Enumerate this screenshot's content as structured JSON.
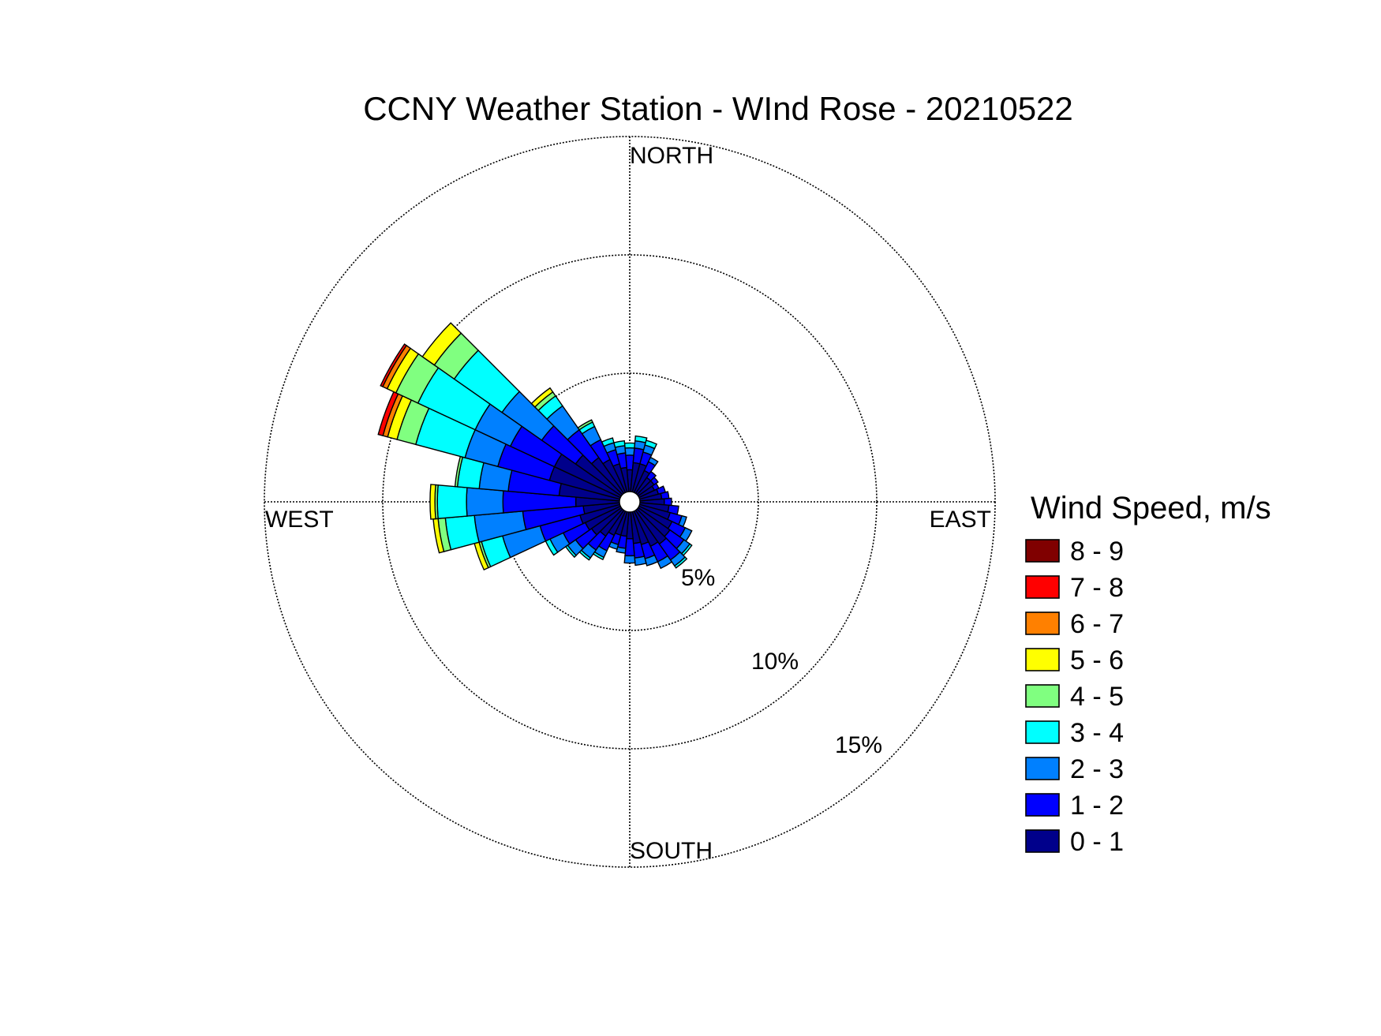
{
  "chart_data": {
    "type": "wind-rose",
    "title": "CCNY Weather Station - WInd Rose - 20210522",
    "direction_labels": {
      "north": "NORTH",
      "south": "SOUTH",
      "east": "EAST",
      "west": "WEST"
    },
    "radial_tick_labels": [
      "5%",
      "10%",
      "15%"
    ],
    "radial_ticks_percent": [
      5,
      10,
      15
    ],
    "rmax_percent": 15,
    "legend_title": "Wind Speed, m/s",
    "legend_position": "right",
    "speed_bins": [
      {
        "label": "0 - 1",
        "color": "#00008b"
      },
      {
        "label": "1 - 2",
        "color": "#0000ff"
      },
      {
        "label": "2 - 3",
        "color": "#0080ff"
      },
      {
        "label": "3 - 4",
        "color": "#00ffff"
      },
      {
        "label": "4 - 5",
        "color": "#80ff80"
      },
      {
        "label": "5 - 6",
        "color": "#ffff00"
      },
      {
        "label": "6 - 7",
        "color": "#ff8000"
      },
      {
        "label": "7 - 8",
        "color": "#ff0000"
      },
      {
        "label": "8 - 9",
        "color": "#800000"
      }
    ],
    "sector_width_deg": 10,
    "sectors": [
      {
        "dir": 0,
        "cum": [
          0.9,
          1.5,
          1.8,
          2.0
        ]
      },
      {
        "dir": 10,
        "cum": [
          1.2,
          1.8,
          2.1,
          2.3
        ]
      },
      {
        "dir": 20,
        "cum": [
          1.2,
          1.7,
          2.0,
          2.2
        ]
      },
      {
        "dir": 30,
        "cum": [
          1.0,
          1.4,
          1.6
        ]
      },
      {
        "dir": 40,
        "cum": [
          0.8,
          1.1
        ]
      },
      {
        "dir": 50,
        "cum": [
          0.8,
          1.0
        ]
      },
      {
        "dir": 60,
        "cum": [
          0.7,
          0.9
        ]
      },
      {
        "dir": 70,
        "cum": [
          0.8,
          1.1
        ]
      },
      {
        "dir": 80,
        "cum": [
          0.9,
          1.2
        ]
      },
      {
        "dir": 90,
        "cum": [
          1.0,
          1.3
        ]
      },
      {
        "dir": 100,
        "cum": [
          1.2,
          1.6
        ]
      },
      {
        "dir": 110,
        "cum": [
          1.3,
          1.8,
          2.0
        ]
      },
      {
        "dir": 120,
        "cum": [
          1.5,
          2.1,
          2.4
        ]
      },
      {
        "dir": 130,
        "cum": [
          1.6,
          2.3,
          2.6,
          2.7
        ]
      },
      {
        "dir": 140,
        "cum": [
          1.7,
          2.5,
          2.8,
          2.9
        ]
      },
      {
        "dir": 150,
        "cum": [
          1.6,
          2.3,
          2.6
        ]
      },
      {
        "dir": 160,
        "cum": [
          1.4,
          2.0,
          2.3
        ]
      },
      {
        "dir": 170,
        "cum": [
          1.3,
          1.9,
          2.2
        ]
      },
      {
        "dir": 180,
        "cum": [
          1.1,
          1.8,
          2.1
        ]
      },
      {
        "dir": 190,
        "cum": [
          1.0,
          1.5,
          1.7
        ]
      },
      {
        "dir": 200,
        "cum": [
          1.0,
          1.4,
          1.6
        ]
      },
      {
        "dir": 210,
        "cum": [
          1.1,
          1.8,
          2.1,
          2.2
        ]
      },
      {
        "dir": 220,
        "cum": [
          1.3,
          2.0,
          2.4,
          2.5
        ]
      },
      {
        "dir": 230,
        "cum": [
          1.5,
          2.3,
          2.7,
          2.8
        ]
      },
      {
        "dir": 240,
        "cum": [
          1.6,
          2.6,
          3.2,
          3.4
        ]
      },
      {
        "dir": 250,
        "cum": [
          1.7,
          3.4,
          5.0,
          5.9,
          6.0,
          6.2
        ]
      },
      {
        "dir": 260,
        "cum": [
          1.5,
          4.0,
          6.0,
          7.2,
          7.5,
          7.7
        ]
      },
      {
        "dir": 270,
        "cum": [
          1.8,
          4.8,
          6.3,
          7.5,
          7.6,
          7.8
        ]
      },
      {
        "dir": 280,
        "cum": [
          2.5,
          4.6,
          5.8,
          6.7,
          6.8
        ]
      },
      {
        "dir": 290,
        "cum": [
          3.0,
          5.2,
          6.6,
          8.7,
          9.5,
          9.9,
          10.1,
          10.3
        ]
      },
      {
        "dir": 300,
        "cum": [
          3.0,
          5.0,
          6.6,
          9.2,
          10.2,
          10.6,
          10.8,
          10.9
        ]
      },
      {
        "dir": 310,
        "cum": [
          2.3,
          4.0,
          6.0,
          8.4,
          9.4,
          10.0
        ]
      },
      {
        "dir": 320,
        "cum": [
          1.8,
          3.2,
          4.4,
          4.9,
          5.1,
          5.3
        ]
      },
      {
        "dir": 330,
        "cum": [
          1.5,
          2.4,
          3.0,
          3.2,
          3.3
        ]
      },
      {
        "dir": 340,
        "cum": [
          1.2,
          1.8,
          2.1,
          2.3
        ]
      },
      {
        "dir": 350,
        "cum": [
          1.0,
          1.6,
          1.9,
          2.1
        ]
      }
    ]
  }
}
